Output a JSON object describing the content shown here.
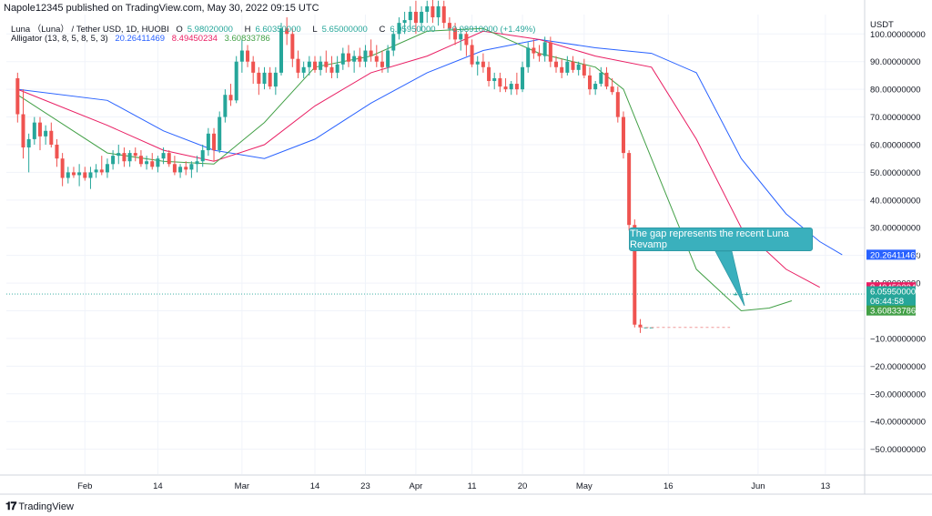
{
  "header": {
    "publisher_line": "Napole12345 published on TradingView.com, May 30, 2022 09:15 UTC"
  },
  "legend": {
    "symbol": "Luna （Luna） / Tether USD, 1D, HUOBI",
    "ohlc": [
      {
        "key": "O",
        "value": "5.98020000"
      },
      {
        "key": "H",
        "value": "6.60350000"
      },
      {
        "key": "L",
        "value": "5.65000000"
      },
      {
        "key": "C",
        "value": "6.05950000"
      }
    ],
    "change": "+0.08910000 (+1.49%)",
    "indicator_name": "Alligator (13, 8, 5, 8, 5, 3)",
    "indicator_values": [
      "20.26411469",
      "8.49450234",
      "3.60833786"
    ]
  },
  "annotation": {
    "text": "The gap represents the recent Luna Revamp"
  },
  "price_labels": {
    "jaw": "20.26411469",
    "teeth": "8.49450234",
    "last_price": "6.05950000",
    "countdown": "06:44:58",
    "lips": "3.60833786"
  },
  "colors": {
    "up": "#26a69a",
    "down": "#ef5350",
    "jaw": "#2962ff",
    "teeth": "#e91e63",
    "lips": "#43a047",
    "callout": "#3ab0bd",
    "grid": "#f0f3fa"
  },
  "branding": {
    "logo_text": "TradingView",
    "logo_icon": "tradingview-logo-icon"
  },
  "chart_data": {
    "type": "candlestick",
    "y_axis_label": "USDT",
    "y_ticks": [
      "100.00000000",
      "90.00000000",
      "80.00000000",
      "70.00000000",
      "60.00000000",
      "50.00000000",
      "40.00000000",
      "30.00000000",
      "20.00000000",
      "10.00000000",
      "0.00000000",
      "−10.00000000",
      "−20.00000000",
      "−30.00000000",
      "−40.00000000",
      "−50.00000000"
    ],
    "y_tick_values": [
      100,
      90,
      80,
      70,
      60,
      50,
      40,
      30,
      20,
      10,
      0,
      -10,
      -20,
      -30,
      -40,
      -50
    ],
    "ylim": [
      -59,
      107
    ],
    "x_ticks": [
      "Feb",
      "14",
      "Mar",
      "14",
      "23",
      "Apr",
      "11",
      "20",
      "May",
      "16",
      "Jun",
      "13"
    ],
    "x_tick_dates": [
      "2022-02-01",
      "2022-02-14",
      "2022-03-01",
      "2022-03-14",
      "2022-03-23",
      "2022-04-01",
      "2022-04-11",
      "2022-04-20",
      "2022-05-01",
      "2022-05-16",
      "2022-06-01",
      "2022-06-13"
    ],
    "xlim": [
      "2022-01-18",
      "2022-06-20"
    ],
    "candles": [
      [
        "2022-01-20",
        84,
        86,
        68,
        71
      ],
      [
        "2022-01-21",
        71,
        80,
        55,
        59
      ],
      [
        "2022-01-22",
        59,
        64,
        50,
        62
      ],
      [
        "2022-01-23",
        62,
        70,
        60,
        68
      ],
      [
        "2022-01-24",
        68,
        70,
        58,
        63
      ],
      [
        "2022-01-25",
        63,
        67,
        60,
        65
      ],
      [
        "2022-01-26",
        65,
        68,
        59,
        60
      ],
      [
        "2022-01-27",
        60,
        62,
        52,
        55
      ],
      [
        "2022-01-28",
        55,
        57,
        45,
        48
      ],
      [
        "2022-01-29",
        48,
        52,
        46,
        50
      ],
      [
        "2022-01-30",
        50,
        52,
        48,
        49
      ],
      [
        "2022-01-31",
        49,
        53,
        45,
        50
      ],
      [
        "2022-02-01",
        50,
        52,
        47,
        48
      ],
      [
        "2022-02-02",
        48,
        52,
        44,
        50
      ],
      [
        "2022-02-03",
        50,
        53,
        48,
        51
      ],
      [
        "2022-02-04",
        51,
        56,
        49,
        50
      ],
      [
        "2022-02-05",
        50,
        55,
        48,
        53
      ],
      [
        "2022-02-06",
        53,
        58,
        51,
        56
      ],
      [
        "2022-02-07",
        56,
        60,
        53,
        57
      ],
      [
        "2022-02-08",
        57,
        59,
        52,
        54
      ],
      [
        "2022-02-09",
        54,
        58,
        52,
        57
      ],
      [
        "2022-02-10",
        57,
        59,
        54,
        56
      ],
      [
        "2022-02-11",
        56,
        58,
        52,
        53
      ],
      [
        "2022-02-12",
        53,
        56,
        51,
        54
      ],
      [
        "2022-02-13",
        54,
        57,
        51,
        52
      ],
      [
        "2022-02-14",
        52,
        56,
        50,
        55
      ],
      [
        "2022-02-15",
        55,
        59,
        53,
        57
      ],
      [
        "2022-02-16",
        57,
        58,
        52,
        53
      ],
      [
        "2022-02-17",
        53,
        56,
        49,
        50
      ],
      [
        "2022-02-18",
        50,
        53,
        48,
        52
      ],
      [
        "2022-02-19",
        52,
        54,
        49,
        51
      ],
      [
        "2022-02-20",
        51,
        54,
        48,
        53
      ],
      [
        "2022-02-21",
        53,
        56,
        50,
        54
      ],
      [
        "2022-02-22",
        54,
        60,
        52,
        58
      ],
      [
        "2022-02-23",
        58,
        66,
        56,
        64
      ],
      [
        "2022-02-24",
        64,
        66,
        54,
        58
      ],
      [
        "2022-02-25",
        58,
        72,
        57,
        70
      ],
      [
        "2022-02-26",
        70,
        80,
        68,
        78
      ],
      [
        "2022-02-27",
        78,
        82,
        74,
        76
      ],
      [
        "2022-02-28",
        76,
        92,
        75,
        90
      ],
      [
        "2022-03-01",
        90,
        98,
        86,
        94
      ],
      [
        "2022-03-02",
        94,
        96,
        88,
        90
      ],
      [
        "2022-03-03",
        90,
        92,
        82,
        86
      ],
      [
        "2022-03-04",
        86,
        88,
        78,
        82
      ],
      [
        "2022-03-05",
        82,
        88,
        80,
        86
      ],
      [
        "2022-03-06",
        86,
        88,
        80,
        81
      ],
      [
        "2022-03-07",
        81,
        88,
        78,
        86
      ],
      [
        "2022-03-08",
        86,
        104,
        85,
        102
      ],
      [
        "2022-03-09",
        102,
        106,
        96,
        100
      ],
      [
        "2022-03-10",
        100,
        102,
        88,
        91
      ],
      [
        "2022-03-11",
        91,
        94,
        84,
        86
      ],
      [
        "2022-03-12",
        86,
        90,
        84,
        88
      ],
      [
        "2022-03-13",
        88,
        92,
        85,
        90
      ],
      [
        "2022-03-14",
        90,
        92,
        86,
        87
      ],
      [
        "2022-03-15",
        87,
        92,
        85,
        90
      ],
      [
        "2022-03-16",
        90,
        94,
        86,
        88
      ],
      [
        "2022-03-17",
        88,
        92,
        84,
        86
      ],
      [
        "2022-03-18",
        86,
        92,
        84,
        89
      ],
      [
        "2022-03-19",
        89,
        95,
        87,
        93
      ],
      [
        "2022-03-20",
        93,
        96,
        88,
        90
      ],
      [
        "2022-03-21",
        90,
        94,
        86,
        92
      ],
      [
        "2022-03-22",
        92,
        95,
        88,
        90
      ],
      [
        "2022-03-23",
        90,
        96,
        88,
        94
      ],
      [
        "2022-03-24",
        94,
        98,
        90,
        92
      ],
      [
        "2022-03-25",
        92,
        96,
        88,
        90
      ],
      [
        "2022-03-26",
        90,
        94,
        86,
        88
      ],
      [
        "2022-03-27",
        88,
        96,
        86,
        94
      ],
      [
        "2022-03-28",
        94,
        101,
        92,
        100
      ],
      [
        "2022-03-29",
        100,
        106,
        98,
        104
      ],
      [
        "2022-03-30",
        104,
        108,
        100,
        105
      ],
      [
        "2022-03-31",
        105,
        110,
        102,
        108
      ],
      [
        "2022-04-01",
        108,
        112,
        100,
        104
      ],
      [
        "2022-04-02",
        104,
        110,
        101,
        108
      ],
      [
        "2022-04-03",
        108,
        112,
        104,
        110
      ],
      [
        "2022-04-04",
        110,
        113,
        104,
        106
      ],
      [
        "2022-04-05",
        106,
        112,
        103,
        110
      ],
      [
        "2022-04-06",
        110,
        112,
        102,
        104
      ],
      [
        "2022-04-07",
        104,
        106,
        98,
        102
      ],
      [
        "2022-04-08",
        102,
        104,
        96,
        98
      ],
      [
        "2022-04-09",
        98,
        102,
        94,
        100
      ],
      [
        "2022-04-10",
        100,
        101,
        92,
        96
      ],
      [
        "2022-04-11",
        96,
        98,
        88,
        89
      ],
      [
        "2022-04-12",
        89,
        92,
        85,
        90
      ],
      [
        "2022-04-13",
        90,
        93,
        86,
        88
      ],
      [
        "2022-04-14",
        88,
        90,
        81,
        83
      ],
      [
        "2022-04-15",
        83,
        86,
        80,
        84
      ],
      [
        "2022-04-16",
        84,
        86,
        79,
        81
      ],
      [
        "2022-04-17",
        81,
        84,
        79,
        80
      ],
      [
        "2022-04-18",
        80,
        83,
        78,
        82
      ],
      [
        "2022-04-19",
        82,
        86,
        78,
        80
      ],
      [
        "2022-04-20",
        80,
        90,
        79,
        88
      ],
      [
        "2022-04-21",
        88,
        97,
        86,
        95
      ],
      [
        "2022-04-22",
        95,
        98,
        91,
        93
      ],
      [
        "2022-04-23",
        93,
        96,
        90,
        92
      ],
      [
        "2022-04-24",
        92,
        99,
        90,
        97
      ],
      [
        "2022-04-25",
        97,
        99,
        88,
        90
      ],
      [
        "2022-04-26",
        90,
        92,
        86,
        88
      ],
      [
        "2022-04-27",
        88,
        91,
        84,
        86
      ],
      [
        "2022-04-28",
        86,
        92,
        85,
        90
      ],
      [
        "2022-04-29",
        90,
        92,
        86,
        87
      ],
      [
        "2022-04-30",
        87,
        90,
        85,
        89
      ],
      [
        "2022-05-01",
        89,
        91,
        84,
        85
      ],
      [
        "2022-05-02",
        85,
        88,
        78,
        80
      ],
      [
        "2022-05-03",
        80,
        83,
        78,
        82
      ],
      [
        "2022-05-04",
        82,
        88,
        81,
        86
      ],
      [
        "2022-05-05",
        86,
        88,
        80,
        81
      ],
      [
        "2022-05-06",
        81,
        84,
        78,
        79
      ],
      [
        "2022-05-07",
        79,
        81,
        68,
        70
      ],
      [
        "2022-05-08",
        70,
        72,
        55,
        57
      ],
      [
        "2022-05-09",
        57,
        58,
        29,
        31
      ],
      [
        "2022-05-10",
        31,
        33,
        -6,
        -5
      ],
      [
        "2022-05-11",
        -5,
        -3,
        -8,
        -6
      ],
      [
        "2022-05-12",
        -6,
        -6,
        -6,
        -6
      ],
      [
        "2022-05-13",
        -6,
        -6,
        -6,
        -6
      ],
      [
        "2022-05-28",
        5.65,
        6.6,
        5.6,
        6.06
      ],
      [
        "2022-05-29",
        6.0,
        6.6,
        5.65,
        6.06
      ],
      [
        "2022-05-30",
        5.98,
        6.6035,
        5.65,
        6.0595
      ]
    ],
    "series": [
      {
        "name": "Alligator Jaw",
        "points": [
          [
            "2022-01-20",
            80
          ],
          [
            "2022-02-05",
            76
          ],
          [
            "2022-02-15",
            65
          ],
          [
            "2022-02-24",
            58
          ],
          [
            "2022-03-05",
            55
          ],
          [
            "2022-03-14",
            62
          ],
          [
            "2022-03-24",
            75
          ],
          [
            "2022-04-03",
            86
          ],
          [
            "2022-04-13",
            94
          ],
          [
            "2022-04-23",
            98
          ],
          [
            "2022-05-03",
            95
          ],
          [
            "2022-05-13",
            93
          ],
          [
            "2022-05-21",
            86
          ],
          [
            "2022-05-29",
            55
          ],
          [
            "2022-06-06",
            35
          ],
          [
            "2022-06-12",
            25
          ],
          [
            "2022-06-16",
            20.26411469
          ]
        ]
      },
      {
        "name": "Alligator Teeth",
        "points": [
          [
            "2022-01-20",
            80
          ],
          [
            "2022-02-05",
            67
          ],
          [
            "2022-02-15",
            58
          ],
          [
            "2022-02-24",
            54
          ],
          [
            "2022-03-05",
            60
          ],
          [
            "2022-03-14",
            74
          ],
          [
            "2022-03-24",
            86
          ],
          [
            "2022-04-03",
            92
          ],
          [
            "2022-04-13",
            101
          ],
          [
            "2022-04-23",
            98
          ],
          [
            "2022-05-03",
            92
          ],
          [
            "2022-05-13",
            88
          ],
          [
            "2022-05-21",
            62
          ],
          [
            "2022-05-29",
            30
          ],
          [
            "2022-06-06",
            15
          ],
          [
            "2022-06-12",
            8.49450234
          ]
        ]
      },
      {
        "name": "Alligator Lips",
        "points": [
          [
            "2022-01-20",
            78
          ],
          [
            "2022-02-05",
            57
          ],
          [
            "2022-02-15",
            54
          ],
          [
            "2022-02-24",
            53
          ],
          [
            "2022-03-05",
            68
          ],
          [
            "2022-03-14",
            88
          ],
          [
            "2022-03-24",
            92
          ],
          [
            "2022-04-03",
            101
          ],
          [
            "2022-04-13",
            102
          ],
          [
            "2022-04-23",
            93
          ],
          [
            "2022-05-03",
            88
          ],
          [
            "2022-05-08",
            80
          ],
          [
            "2022-05-13",
            55
          ],
          [
            "2022-05-21",
            15
          ],
          [
            "2022-05-29",
            0
          ],
          [
            "2022-06-03",
            1
          ],
          [
            "2022-06-07",
            3.60833786
          ]
        ]
      }
    ],
    "last_price": 6.0595
  }
}
